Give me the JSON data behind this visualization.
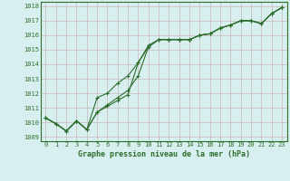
{
  "title": "Graphe pression niveau de la mer (hPa)",
  "x_labels": [
    0,
    1,
    2,
    3,
    4,
    5,
    6,
    7,
    8,
    9,
    10,
    11,
    12,
    13,
    14,
    15,
    16,
    17,
    18,
    19,
    20,
    21,
    22,
    23
  ],
  "ylim": [
    1008.7,
    1018.3
  ],
  "yticks": [
    1009,
    1010,
    1011,
    1012,
    1013,
    1014,
    1015,
    1016,
    1017,
    1018
  ],
  "background_color": "#d8efef",
  "grid_color": "#c8b8b8",
  "line_color": "#2d6e2d",
  "line1": [
    1010.3,
    1009.9,
    1009.4,
    1010.1,
    1009.5,
    1010.7,
    1011.1,
    1011.5,
    1011.9,
    1014.1,
    1015.2,
    1015.7,
    1015.7,
    1015.7,
    1015.7,
    1016.0,
    1016.1,
    1016.5,
    1016.7,
    1017.0,
    1017.0,
    1016.8,
    1017.5,
    1017.9
  ],
  "line2": [
    1010.3,
    1009.9,
    1009.4,
    1010.1,
    1009.5,
    1010.7,
    1011.2,
    1011.7,
    1012.2,
    1013.2,
    1015.2,
    1015.7,
    1015.7,
    1015.7,
    1015.7,
    1016.0,
    1016.1,
    1016.5,
    1016.7,
    1017.0,
    1017.0,
    1016.8,
    1017.5,
    1017.9
  ],
  "line3": [
    1010.3,
    1009.9,
    1009.4,
    1010.1,
    1009.5,
    1011.7,
    1012.0,
    1012.7,
    1013.2,
    1014.1,
    1015.3,
    1015.7,
    1015.7,
    1015.7,
    1015.7,
    1016.0,
    1016.1,
    1016.5,
    1016.7,
    1017.0,
    1017.0,
    1016.8,
    1017.5,
    1017.9
  ],
  "marker": "+",
  "marker_size": 3.5,
  "line_width": 0.8,
  "title_fontsize": 6.0,
  "tick_fontsize": 5.0
}
